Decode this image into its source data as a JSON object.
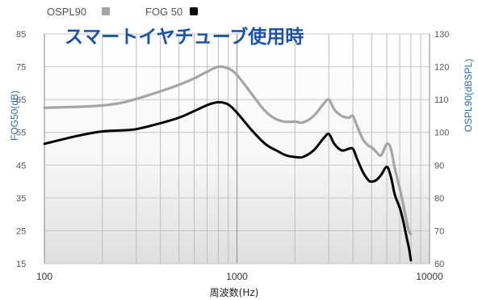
{
  "chart_data": {
    "type": "line",
    "title": "スマートイヤチューブ使用時",
    "xlabel": "周波数(Hz)",
    "ylabel_left": "FOG50(dB)",
    "ylabel_right": "OSPL90(dBSPL)",
    "x_scale": "log",
    "xlim": [
      100,
      10000
    ],
    "x_ticks": [
      "100",
      "1000",
      "10000"
    ],
    "ylim_left": [
      15,
      85
    ],
    "ylim_right": [
      60,
      130
    ],
    "y_ticks_left": [
      "15",
      "25",
      "35",
      "45",
      "55",
      "65",
      "75",
      "85"
    ],
    "y_ticks_right": [
      "60",
      "70",
      "80",
      "90",
      "100",
      "110",
      "120",
      "130"
    ],
    "grid": true,
    "legend_position": "top-left",
    "colors": {
      "OSPL90": "#a5a5a5",
      "FOG 50": "#000000",
      "title": "#1a53a5",
      "axis_label": "#2f6ea8"
    },
    "series": [
      {
        "name": "OSPL90",
        "axis": "right",
        "x": [
          100,
          150,
          200,
          250,
          300,
          400,
          500,
          600,
          700,
          800,
          900,
          1000,
          1200,
          1400,
          1600,
          1800,
          2000,
          2200,
          2500,
          2800,
          3000,
          3200,
          3500,
          3800,
          4000,
          4200,
          4500,
          4800,
          5000,
          5300,
          5600,
          6000,
          6300,
          6600,
          7000,
          7300,
          7600,
          7800,
          8000
        ],
        "values": [
          107.5,
          107.8,
          108.2,
          109,
          110.2,
          112.5,
          114.5,
          116.5,
          118.5,
          120,
          119.5,
          117.5,
          111.5,
          106.5,
          104,
          103.2,
          103.3,
          103,
          105,
          108.5,
          110,
          107,
          105,
          104.5,
          105,
          102,
          98,
          96,
          95.5,
          94,
          93,
          96.5,
          95,
          89,
          83,
          78,
          73,
          70,
          69
        ]
      },
      {
        "name": "FOG 50",
        "axis": "left",
        "x": [
          100,
          150,
          200,
          250,
          300,
          400,
          500,
          600,
          700,
          800,
          900,
          1000,
          1200,
          1400,
          1600,
          1800,
          2000,
          2200,
          2500,
          2800,
          3000,
          3200,
          3500,
          3800,
          4000,
          4200,
          4500,
          4800,
          5000,
          5300,
          5600,
          6000,
          6300,
          6600,
          7000,
          7300,
          7600,
          7800,
          8000
        ],
        "values": [
          51.5,
          54,
          55.3,
          55.6,
          56,
          57.8,
          59.5,
          61.5,
          63.3,
          64.2,
          63.5,
          61,
          55.5,
          51.5,
          49.5,
          48,
          47.5,
          47.5,
          49.5,
          53,
          54.5,
          51.5,
          49.5,
          50,
          50,
          47,
          43,
          40.5,
          40,
          40.5,
          42,
          44.5,
          41.5,
          36,
          32,
          28,
          23,
          20,
          16
        ]
      }
    ]
  }
}
